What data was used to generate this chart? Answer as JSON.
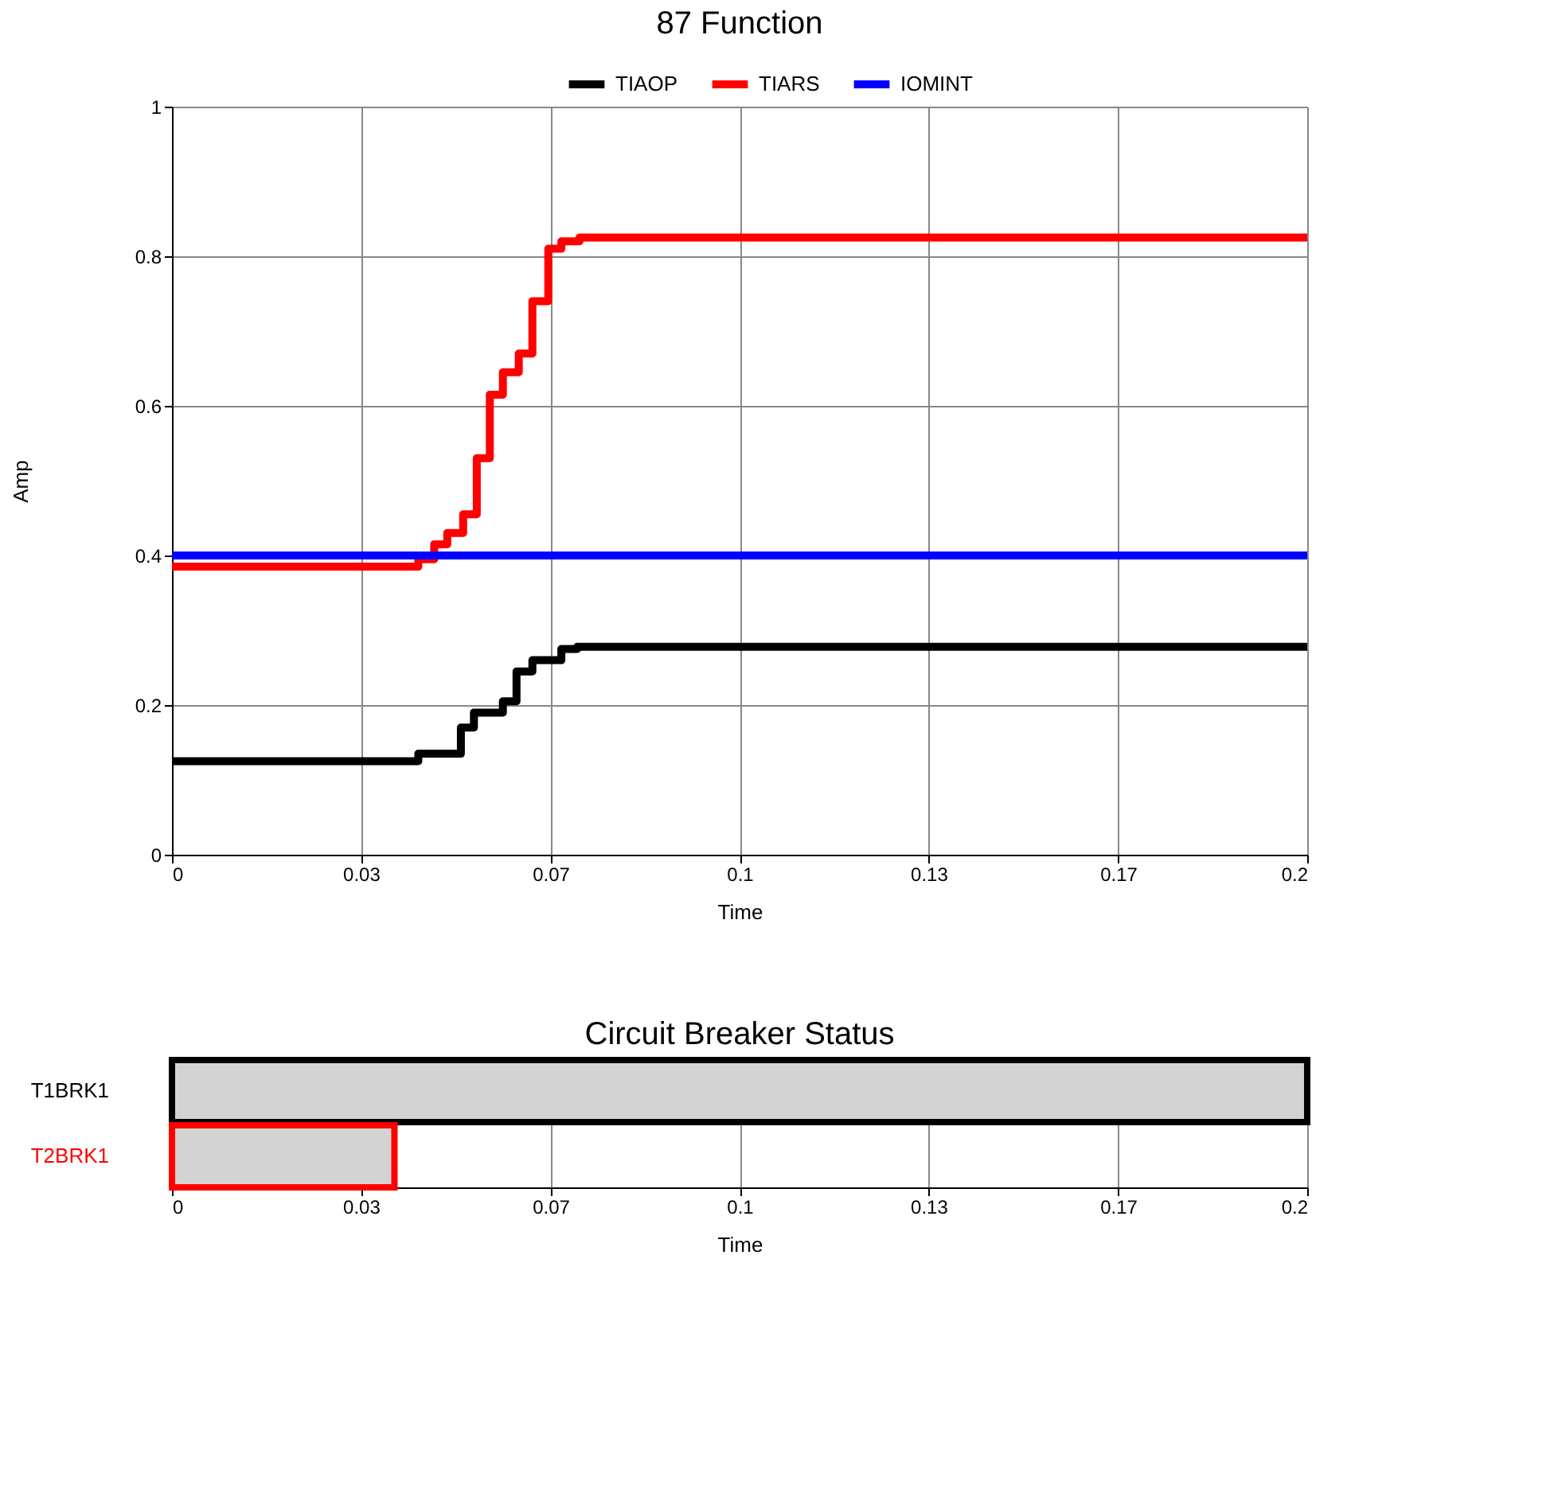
{
  "chart_data": [
    {
      "type": "step",
      "title": "87 Function",
      "xlabel": "Time",
      "ylabel": "Amp",
      "legend": "top",
      "grid": true,
      "line_style": "solid",
      "xlim": [
        0,
        0.2
      ],
      "xticks": [
        0,
        {
          "value": 0.0333,
          "label": "0.03"
        },
        {
          "value": 0.0667,
          "label": "0.07"
        },
        0.1,
        {
          "value": 0.1333,
          "label": "0.13"
        },
        {
          "value": 0.1667,
          "label": "0.17"
        },
        0.2
      ],
      "ylim": [
        0,
        1
      ],
      "yticks": [
        0,
        0.2,
        0.4,
        0.6,
        0.8,
        1
      ],
      "series": [
        {
          "name": "TIAOP",
          "color": "#000000",
          "x": [
            0,
            0.0434,
            0.0509,
            0.0532,
            0.0583,
            0.0607,
            0.0635,
            0.0686,
            0.0714,
            0.2
          ],
          "values": [
            0.125,
            0.135,
            0.17,
            0.19,
            0.205,
            0.245,
            0.26,
            0.275,
            0.278,
            0.278
          ]
        },
        {
          "name": "TIARS",
          "color": "#ff0000",
          "x": [
            0,
            0.0434,
            0.0462,
            0.0485,
            0.0513,
            0.0537,
            0.056,
            0.0583,
            0.0611,
            0.0635,
            0.0663,
            0.0686,
            0.0718,
            0.2
          ],
          "values": [
            0.385,
            0.395,
            0.415,
            0.43,
            0.455,
            0.53,
            0.615,
            0.645,
            0.67,
            0.74,
            0.81,
            0.82,
            0.825,
            0.825
          ]
        },
        {
          "name": "IOMINT",
          "color": "#0000ff",
          "x": [
            0,
            0.2
          ],
          "values": [
            0.4,
            0.4
          ]
        }
      ]
    },
    {
      "type": "bar",
      "orientation": "horizontal",
      "title": "Circuit Breaker Status",
      "xlabel": "Time",
      "grid": "x",
      "categories": [
        "T1BRK1",
        "T2BRK1"
      ],
      "base": [
        0,
        0
      ],
      "values": [
        0.2,
        0.0392
      ],
      "colors": [
        "#000000",
        "#ff0000"
      ],
      "xlim": [
        0,
        0.2
      ],
      "xticks": [
        0,
        {
          "value": 0.0333,
          "label": "0.03"
        },
        {
          "value": 0.0667,
          "label": "0.07"
        },
        0.1,
        {
          "value": 0.1333,
          "label": "0.13"
        },
        {
          "value": 0.1667,
          "label": "0.17"
        },
        0.2
      ]
    }
  ]
}
